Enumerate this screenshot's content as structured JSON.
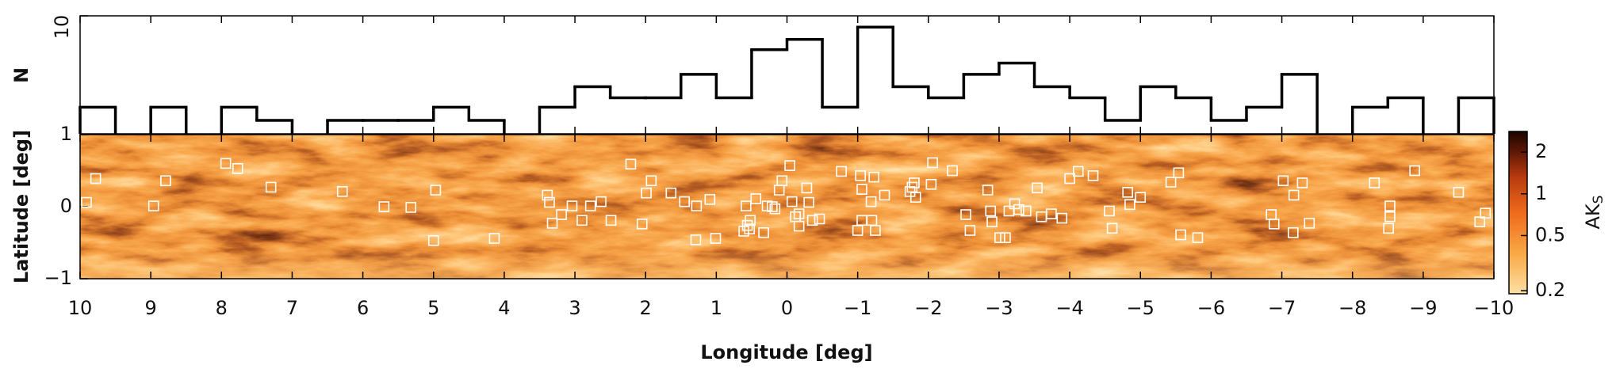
{
  "chart_data": [
    {
      "type": "histogram",
      "ylabel": "N",
      "log_y": true,
      "ylim": [
        1,
        10
      ],
      "yticks": [
        10
      ],
      "color": "#000000",
      "xlim": [
        10,
        -10
      ],
      "bins": [
        10,
        9.5,
        9,
        8.5,
        8,
        7.5,
        7,
        6.5,
        6,
        5.5,
        5,
        4.5,
        4,
        3.5,
        3,
        2.5,
        2,
        1.5,
        1,
        0.5,
        0,
        -0.5,
        -1,
        -1.5,
        -2,
        -2.5,
        -3,
        -3.5,
        -4,
        -4.5,
        -5,
        -5.5,
        -6,
        -6.5,
        -7,
        -7.5,
        -8,
        -8.5,
        -9,
        -9.5,
        -10
      ],
      "values": [
        1.68,
        null,
        1.68,
        null,
        1.68,
        1.3,
        null,
        1.3,
        1.3,
        1.3,
        1.68,
        1.3,
        null,
        1.68,
        2.51,
        2.02,
        2.02,
        3.19,
        2.02,
        5.17,
        6.31,
        1.68,
        8.03,
        2.51,
        2.02,
        3.19,
        3.98,
        2.51,
        2.02,
        1.3,
        2.51,
        2.02,
        1.3,
        1.68,
        3.19,
        null,
        1.68,
        2.02,
        null,
        2.02
      ]
    },
    {
      "type": "scatter",
      "xlabel": "Longitude [deg]",
      "ylabel": "Latitude [deg]",
      "marker_color": "#ffffff",
      "xlim": [
        10,
        -10
      ],
      "ylim": [
        -1,
        1
      ],
      "xticks": [
        10,
        9,
        8,
        7,
        6,
        5,
        4,
        3,
        2,
        1,
        0,
        {
          "value": -1,
          "label": "−1"
        },
        {
          "value": -2,
          "label": "−2"
        },
        {
          "value": -3,
          "label": "−3"
        },
        {
          "value": -4,
          "label": "−4"
        },
        {
          "value": -5,
          "label": "−5"
        },
        {
          "value": -6,
          "label": "−6"
        },
        {
          "value": -7,
          "label": "−7"
        },
        {
          "value": -8,
          "label": "−8"
        },
        {
          "value": -9,
          "label": "−9"
        },
        {
          "value": -10,
          "label": "−10"
        }
      ],
      "yticks": [
        {
          "value": -1,
          "label": "−1"
        },
        0,
        1
      ],
      "x": [
        9.91,
        9.78,
        8.79,
        8.96,
        7.94,
        7.77,
        7.3,
        6.29,
        5.7,
        5.32,
        4.97,
        5.0,
        4.14,
        3.39,
        3.36,
        3.32,
        3.19,
        3.04,
        2.9,
        2.78,
        2.63,
        2.49,
        2.21,
        2.05,
        1.99,
        1.92,
        1.64,
        1.45,
        1.29,
        1.28,
        1.09,
        1.01,
        0.58,
        0.52,
        0.53,
        0.56,
        0.61,
        0.44,
        0.33,
        0.28,
        0.21,
        0.17,
        0.11,
        0.07,
        -0.04,
        -0.07,
        -0.12,
        -0.17,
        -0.17,
        -0.28,
        -0.31,
        -0.36,
        -0.46,
        -0.77,
        -1.0,
        -1.04,
        -1.06,
        -1.06,
        -1.19,
        -1.2,
        -1.23,
        -1.25,
        -1.38,
        -1.74,
        -1.77,
        -1.8,
        -1.82,
        -2.04,
        -2.06,
        -2.34,
        -2.53,
        -2.59,
        -2.84,
        -2.88,
        -2.9,
        -3.01,
        -3.09,
        -3.14,
        -3.22,
        -3.28,
        -3.38,
        -3.54,
        -3.6,
        -3.74,
        -3.89,
        -4.0,
        -4.12,
        -4.33,
        -4.56,
        -4.6,
        -4.82,
        -4.85,
        -5.0,
        -5.43,
        -5.54,
        -5.57,
        -5.81,
        -6.85,
        -6.89,
        -7.02,
        -7.17,
        -7.29,
        -7.39,
        -7.16,
        -8.31,
        -8.53,
        -8.53,
        -8.51,
        -8.88,
        -9.5,
        -9.8,
        -9.88
      ],
      "y": [
        0.06,
        0.39,
        0.36,
        0.01,
        0.6,
        0.53,
        0.27,
        0.21,
        0.0,
        -0.01,
        0.23,
        -0.47,
        -0.44,
        0.16,
        0.06,
        -0.23,
        -0.11,
        0.01,
        -0.19,
        0.01,
        0.07,
        -0.19,
        0.59,
        -0.24,
        0.19,
        0.36,
        0.19,
        0.07,
        -0.46,
        0.01,
        0.1,
        -0.44,
        0.01,
        -0.19,
        -0.31,
        -0.26,
        -0.34,
        0.11,
        -0.36,
        0.01,
        0.0,
        -0.03,
        0.23,
        0.36,
        0.57,
        0.07,
        -0.14,
        -0.27,
        -0.1,
        0.26,
        0.06,
        -0.19,
        -0.17,
        0.49,
        -0.33,
        0.43,
        0.24,
        -0.19,
        0.07,
        -0.19,
        0.41,
        -0.33,
        0.16,
        0.21,
        0.27,
        0.33,
        0.13,
        0.31,
        0.61,
        0.5,
        -0.11,
        -0.33,
        0.23,
        -0.06,
        -0.21,
        -0.43,
        -0.43,
        -0.06,
        0.04,
        -0.04,
        -0.06,
        0.26,
        -0.14,
        -0.1,
        -0.16,
        0.39,
        0.49,
        0.43,
        -0.06,
        -0.3,
        0.2,
        0.03,
        0.13,
        0.34,
        0.47,
        -0.39,
        -0.43,
        -0.11,
        -0.24,
        0.36,
        0.16,
        0.33,
        -0.23,
        -0.36,
        0.33,
        0.01,
        -0.14,
        -0.3,
        0.5,
        0.2,
        -0.21,
        -0.09
      ],
      "colorbar": {
        "label": "AK",
        "label_sub": "S",
        "log": true,
        "lim": [
          0.19,
          2.82
        ],
        "ticks": [
          0.2,
          0.5,
          1,
          2
        ]
      }
    }
  ]
}
